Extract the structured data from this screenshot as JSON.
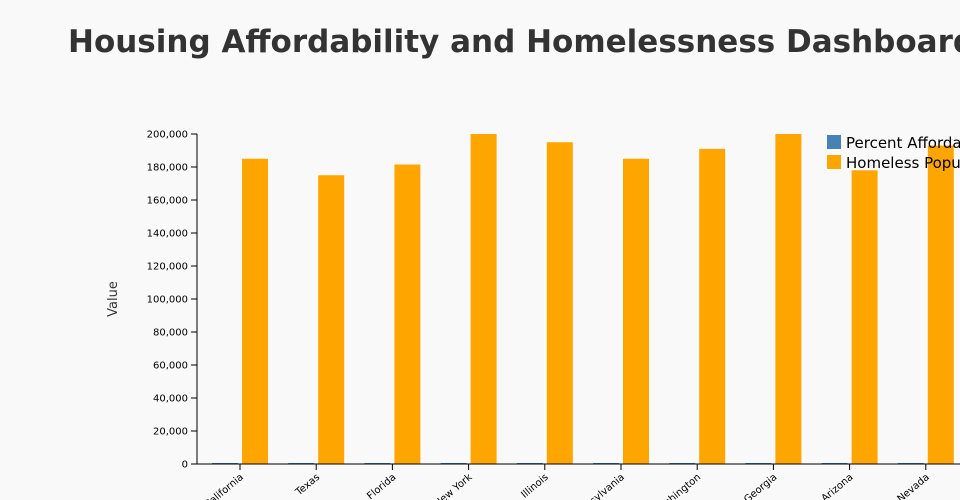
{
  "page": {
    "title": "Housing Affordability and Homelessness Dashboard"
  },
  "chart_data": {
    "type": "bar",
    "title": "Housing Affordability and Homelessness Dashboard",
    "xlabel": "",
    "ylabel": "Value",
    "ylim": [
      0,
      200000
    ],
    "yticks": [
      0,
      20000,
      40000,
      60000,
      80000,
      100000,
      120000,
      140000,
      160000,
      180000,
      200000
    ],
    "ytick_labels": [
      "0",
      "20,000",
      "40,000",
      "60,000",
      "80,000",
      "100,000",
      "120,000",
      "140,000",
      "160,000",
      "180,000",
      "200,000"
    ],
    "categories": [
      "California",
      "Texas",
      "Florida",
      "New York",
      "Illinois",
      "Pennsylvania",
      "Washington",
      "Georgia",
      "Arizona",
      "Nevada"
    ],
    "category_labels_as_shown": [
      "California",
      "Texas",
      "Florida",
      "New York",
      "Illinois",
      "sylvania",
      "shington",
      "Georgia",
      "Arizona",
      "Nevada"
    ],
    "series": [
      {
        "name": "Percent Afforda",
        "color": "#4682b4",
        "values": [
          30,
          40,
          35,
          25,
          45,
          50,
          30,
          40,
          35,
          30
        ]
      },
      {
        "name": "Homeless Popu",
        "color": "#ffa500",
        "values": [
          185000,
          175000,
          181500,
          200000,
          195000,
          185000,
          191000,
          200000,
          178000,
          193000
        ]
      }
    ],
    "legend": "top-right",
    "grid": false
  }
}
